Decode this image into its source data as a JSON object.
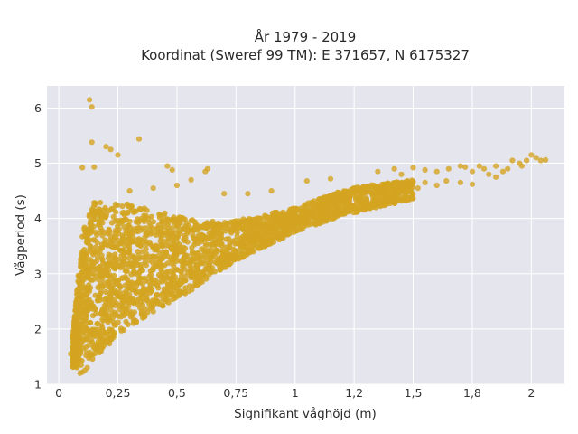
{
  "chart_data": {
    "type": "scatter",
    "title_line1": "År 1979 - 2019",
    "title_line2": "Koordinat (Sweref 99 TM): E 371657, N 6175327",
    "xlabel": "Signifikant våghöjd (m)",
    "ylabel": "Vågperiod (s)",
    "xlim": [
      -0.05,
      2.14
    ],
    "ylim": [
      1.0,
      6.4
    ],
    "x_ticks": [
      0,
      0.25,
      0.5,
      0.75,
      1,
      1.25,
      1.5,
      1.75,
      2
    ],
    "x_tick_labels": [
      "0",
      "0,25",
      "0,5",
      "0,75",
      "1",
      "1,2",
      "1,5",
      "1,8",
      "2"
    ],
    "y_ticks": [
      1,
      2,
      3,
      4,
      5,
      6
    ],
    "y_tick_labels": [
      "1",
      "2",
      "3",
      "4",
      "5",
      "6"
    ],
    "grid": true,
    "marker_color": "#d4a421",
    "background_color": "#e5e5ee",
    "dense_band": {
      "note_values": "approximate envelope of the dense point cloud, x in m, y in s",
      "x": [
        0.06,
        0.1,
        0.15,
        0.2,
        0.25,
        0.3,
        0.4,
        0.5,
        0.6,
        0.7,
        0.8,
        0.9,
        1.0,
        1.1,
        1.2,
        1.3,
        1.4,
        1.5
      ],
      "y_low": [
        1.3,
        1.3,
        1.45,
        1.65,
        1.9,
        2.05,
        2.3,
        2.55,
        2.8,
        3.1,
        3.35,
        3.55,
        3.75,
        3.9,
        4.05,
        4.15,
        4.25,
        4.35
      ],
      "y_high": [
        1.9,
        3.8,
        4.3,
        4.3,
        4.3,
        4.25,
        4.15,
        4.05,
        3.95,
        3.95,
        4.0,
        4.1,
        4.2,
        4.35,
        4.5,
        4.6,
        4.65,
        4.7
      ]
    },
    "points": [
      [
        0.13,
        6.15
      ],
      [
        0.14,
        6.02
      ],
      [
        0.14,
        5.38
      ],
      [
        0.2,
        5.3
      ],
      [
        0.22,
        5.25
      ],
      [
        0.34,
        5.44
      ],
      [
        0.25,
        5.15
      ],
      [
        0.1,
        4.92
      ],
      [
        0.15,
        4.93
      ],
      [
        0.46,
        4.95
      ],
      [
        0.48,
        4.88
      ],
      [
        0.62,
        4.85
      ],
      [
        0.63,
        4.9
      ],
      [
        0.56,
        4.7
      ],
      [
        0.5,
        4.6
      ],
      [
        0.4,
        4.55
      ],
      [
        0.3,
        4.5
      ],
      [
        0.7,
        4.45
      ],
      [
        0.8,
        4.45
      ],
      [
        0.9,
        4.5
      ],
      [
        1.05,
        4.68
      ],
      [
        1.15,
        4.72
      ],
      [
        1.35,
        4.85
      ],
      [
        1.42,
        4.9
      ],
      [
        1.5,
        4.92
      ],
      [
        1.55,
        4.88
      ],
      [
        1.6,
        4.85
      ],
      [
        1.65,
        4.9
      ],
      [
        1.7,
        4.95
      ],
      [
        1.72,
        4.93
      ],
      [
        1.75,
        4.85
      ],
      [
        1.78,
        4.95
      ],
      [
        1.8,
        4.9
      ],
      [
        1.82,
        4.8
      ],
      [
        1.85,
        4.75
      ],
      [
        1.88,
        4.85
      ],
      [
        1.9,
        4.9
      ],
      [
        1.92,
        5.05
      ],
      [
        1.95,
        5.0
      ],
      [
        1.98,
        5.05
      ],
      [
        2.0,
        5.15
      ],
      [
        2.02,
        5.1
      ],
      [
        2.04,
        5.05
      ],
      [
        2.06,
        5.06
      ],
      [
        1.96,
        4.95
      ],
      [
        1.85,
        4.95
      ],
      [
        1.6,
        4.6
      ],
      [
        1.7,
        4.65
      ],
      [
        1.75,
        4.62
      ],
      [
        1.64,
        4.68
      ],
      [
        1.52,
        4.55
      ],
      [
        1.45,
        4.8
      ],
      [
        1.4,
        4.6
      ],
      [
        1.55,
        4.65
      ],
      [
        0.06,
        1.45
      ],
      [
        0.07,
        1.4
      ],
      [
        0.08,
        1.35
      ],
      [
        0.09,
        1.2
      ],
      [
        0.1,
        1.22
      ],
      [
        0.11,
        1.25
      ],
      [
        0.12,
        1.3
      ],
      [
        0.05,
        1.55
      ],
      [
        0.06,
        1.6
      ],
      [
        0.08,
        1.7
      ],
      [
        0.07,
        1.85
      ]
    ]
  }
}
